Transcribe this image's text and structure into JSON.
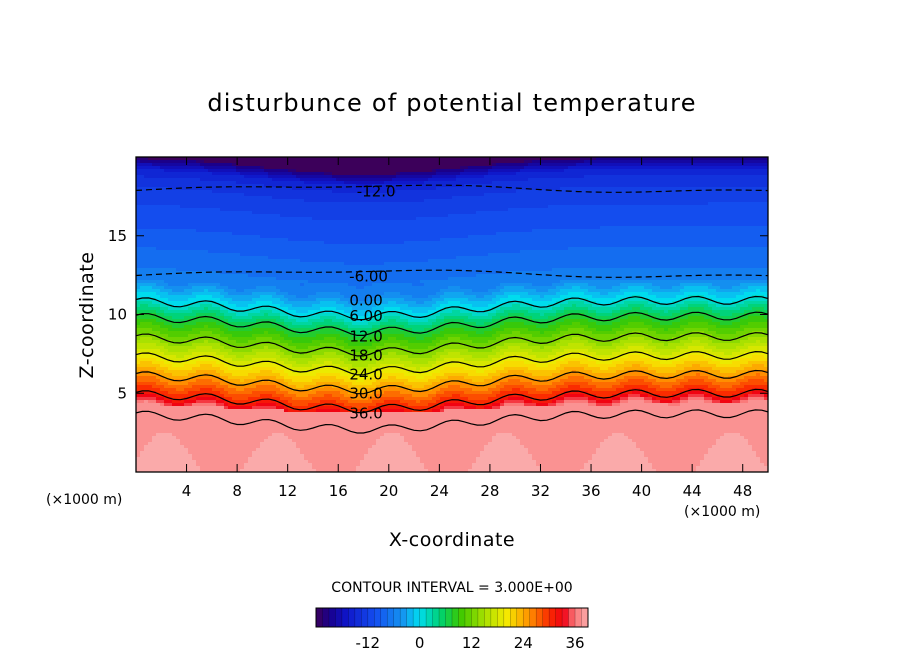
{
  "chart_data": {
    "type": "contour",
    "title": "disturbunce of potential temperature",
    "xlabel": "X-coordinate",
    "ylabel": "Z-coordinate",
    "x_unit": "(×1000 m)",
    "y_unit": "(×1000 m)",
    "xlim": [
      0,
      50
    ],
    "ylim": [
      0,
      20
    ],
    "x_ticks": [
      4,
      8,
      12,
      16,
      20,
      24,
      28,
      32,
      36,
      40,
      44,
      48
    ],
    "y_ticks": [
      5,
      10,
      15
    ],
    "contour_interval_text": "CONTOUR INTERVAL = 3.000E+00",
    "contour_interval": 3.0,
    "contour_labels": [
      {
        "text": "-12.0",
        "x": 19.0,
        "z": 17.8
      },
      {
        "text": "-6.00",
        "x": 18.4,
        "z": 12.4
      },
      {
        "text": "0.00",
        "x": 18.2,
        "z": 10.9
      },
      {
        "text": "6.00",
        "x": 18.2,
        "z": 9.9
      },
      {
        "text": "12.0",
        "x": 18.2,
        "z": 8.6
      },
      {
        "text": "18.0",
        "x": 18.2,
        "z": 7.4
      },
      {
        "text": "24.0",
        "x": 18.2,
        "z": 6.2
      },
      {
        "text": "30.0",
        "x": 18.2,
        "z": 5.0
      },
      {
        "text": "36.0",
        "x": 18.2,
        "z": 3.7
      }
    ],
    "colorbar": {
      "min": -24,
      "max": 39,
      "tick_values": [
        -12,
        0,
        12,
        24,
        36
      ],
      "tick_labels": [
        "-12",
        "0",
        "12",
        "24",
        "36"
      ]
    }
  }
}
